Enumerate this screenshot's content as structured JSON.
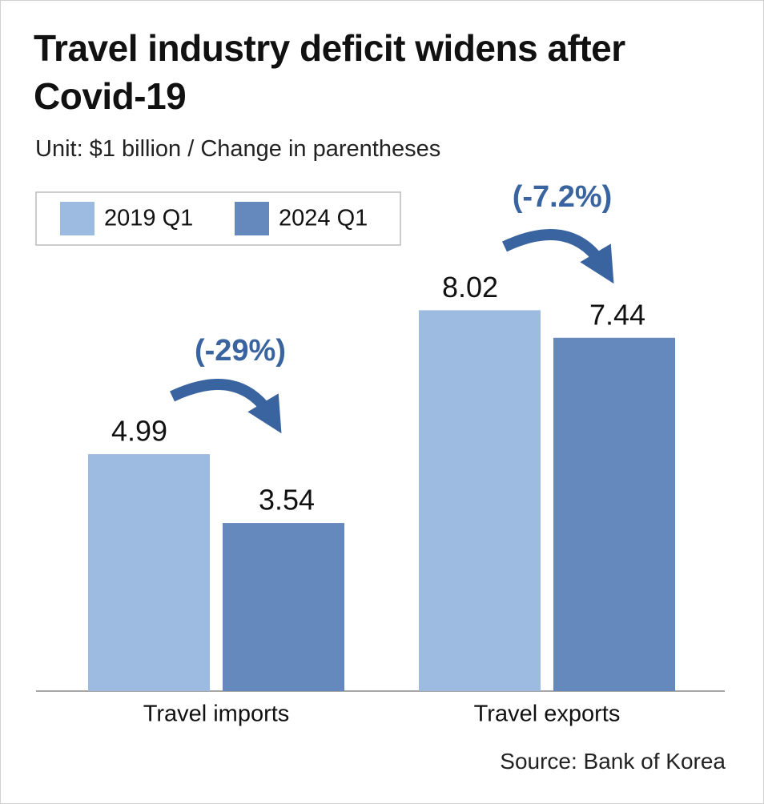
{
  "chart_data": {
    "type": "bar",
    "title": "Travel industry deficit widens after Covid-19",
    "subtitle": "Unit: $1 billion / Change in parentheses",
    "categories": [
      "Travel imports",
      "Travel exports"
    ],
    "series": [
      {
        "name": "2019 Q1",
        "color": "#9dbbe0",
        "values": [
          4.99,
          8.02
        ]
      },
      {
        "name": "2024 Q1",
        "color": "#6588bd",
        "values": [
          3.54,
          7.44
        ]
      }
    ],
    "annotations": [
      "(-29%)",
      "(-7.2%)"
    ],
    "annotation_color": "#3a64a0",
    "source": "Source: Bank of Korea"
  }
}
